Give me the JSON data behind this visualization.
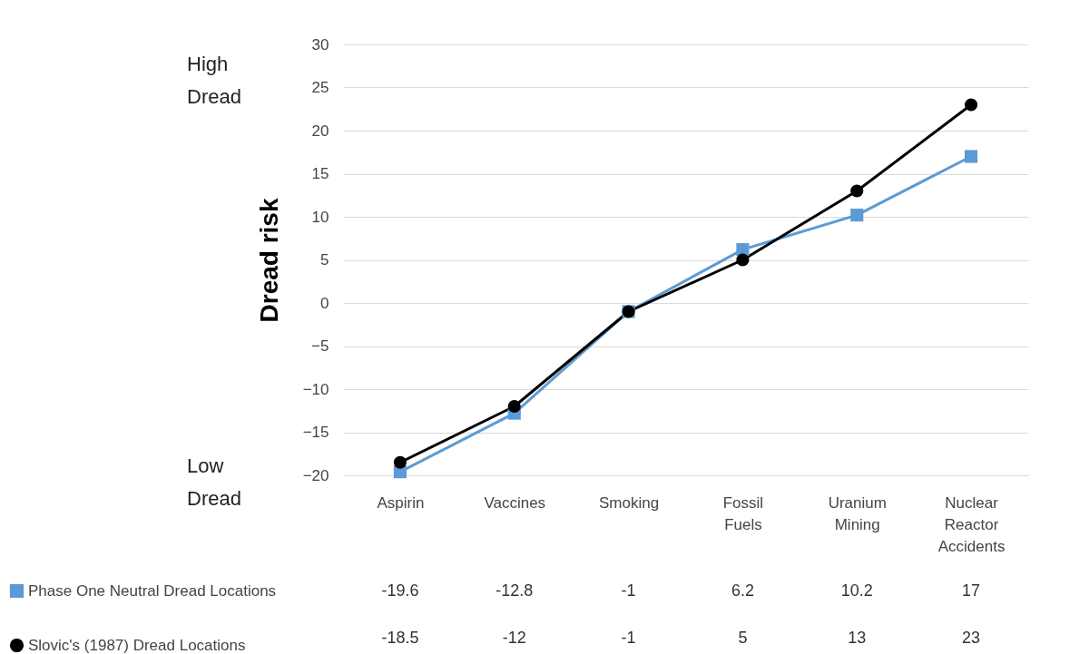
{
  "chart_data": {
    "type": "line",
    "ylabel": "Dread risk",
    "categories": [
      "Aspirin",
      "Vaccines",
      "Smoking",
      "Fossil Fuels",
      "Uranium Mining",
      "Nuclear Reactor Accidents"
    ],
    "series": [
      {
        "name": "Phase One Neutral Dread Locations",
        "color": "#5b9bd5",
        "marker": "square",
        "values": [
          -19.6,
          -12.8,
          -1,
          6.2,
          10.2,
          17
        ]
      },
      {
        "name": "Slovic's (1987) Dread Locations",
        "color": "#000000",
        "marker": "circle",
        "values": [
          -18.5,
          -12,
          -1,
          5,
          13,
          23
        ]
      }
    ],
    "ylim": [
      -20,
      30
    ],
    "yticks": [
      -20,
      -15,
      -10,
      -5,
      0,
      5,
      10,
      15,
      20,
      25,
      30
    ],
    "grid": "y",
    "legend": "bottom left",
    "data_labels": true,
    "annotations": [
      "High Dread",
      "Low Dread"
    ]
  }
}
